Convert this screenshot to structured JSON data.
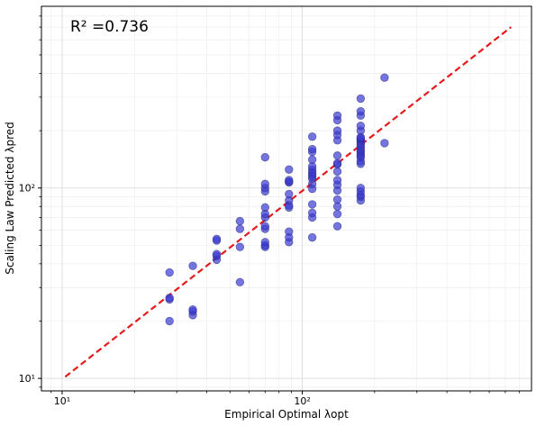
{
  "chart_data": {
    "type": "scatter",
    "title": "",
    "annotation": "R² =0.736",
    "xlabel": "Empirical Optimal λopt",
    "ylabel": "Scaling Law Predicted λpred",
    "xscale": "log",
    "yscale": "log",
    "xlim": [
      8.2,
      900
    ],
    "ylim": [
      8.6,
      900
    ],
    "xticks": [
      {
        "value": 10,
        "label": "10¹"
      },
      {
        "value": 100,
        "label": "10²"
      }
    ],
    "yticks": [
      {
        "value": 10,
        "label": "10¹"
      },
      {
        "value": 100,
        "label": "10²"
      }
    ],
    "grid": true,
    "point_color": "#3b3bd1",
    "line_color": "#e8191c",
    "reference_line": {
      "style": "dashed",
      "x": [
        10.3,
        740
      ],
      "y": [
        10.2,
        700
      ]
    },
    "series": [
      {
        "points": [
          [
            28,
            20
          ],
          [
            28,
            26
          ],
          [
            28,
            26.5
          ],
          [
            28,
            36
          ],
          [
            35,
            21.5
          ],
          [
            35,
            22.5
          ],
          [
            35,
            23
          ],
          [
            35,
            39
          ],
          [
            44,
            42
          ],
          [
            44,
            44
          ],
          [
            44,
            45
          ],
          [
            44,
            53
          ],
          [
            44,
            54
          ],
          [
            55,
            32
          ],
          [
            55,
            49
          ],
          [
            55,
            61
          ],
          [
            55,
            67
          ],
          [
            70,
            49
          ],
          [
            70,
            50
          ],
          [
            70,
            52
          ],
          [
            70,
            61
          ],
          [
            70,
            63
          ],
          [
            70,
            70
          ],
          [
            70,
            73
          ],
          [
            70,
            79
          ],
          [
            70,
            96
          ],
          [
            70,
            100
          ],
          [
            70,
            105
          ],
          [
            70,
            145
          ],
          [
            88,
            52
          ],
          [
            88,
            55
          ],
          [
            88,
            59
          ],
          [
            88,
            79
          ],
          [
            88,
            81
          ],
          [
            88,
            86
          ],
          [
            88,
            93
          ],
          [
            88,
            107
          ],
          [
            88,
            108
          ],
          [
            88,
            110
          ],
          [
            88,
            125
          ],
          [
            110,
            55
          ],
          [
            110,
            70
          ],
          [
            110,
            74
          ],
          [
            110,
            82
          ],
          [
            110,
            99
          ],
          [
            110,
            105
          ],
          [
            110,
            112
          ],
          [
            110,
            115
          ],
          [
            110,
            118
          ],
          [
            110,
            121
          ],
          [
            110,
            125
          ],
          [
            110,
            130
          ],
          [
            110,
            141
          ],
          [
            110,
            155
          ],
          [
            110,
            160
          ],
          [
            110,
            186
          ],
          [
            140,
            63
          ],
          [
            140,
            73
          ],
          [
            140,
            80
          ],
          [
            140,
            87
          ],
          [
            140,
            97
          ],
          [
            140,
            104
          ],
          [
            140,
            110
          ],
          [
            140,
            122
          ],
          [
            140,
            133
          ],
          [
            140,
            135
          ],
          [
            140,
            148
          ],
          [
            140,
            178
          ],
          [
            140,
            190
          ],
          [
            140,
            200
          ],
          [
            140,
            227
          ],
          [
            140,
            240
          ],
          [
            175,
            86
          ],
          [
            175,
            90
          ],
          [
            175,
            92
          ],
          [
            175,
            96
          ],
          [
            175,
            100
          ],
          [
            175,
            134
          ],
          [
            175,
            138
          ],
          [
            175,
            145
          ],
          [
            175,
            148
          ],
          [
            175,
            152
          ],
          [
            175,
            156
          ],
          [
            175,
            159
          ],
          [
            175,
            164
          ],
          [
            175,
            168
          ],
          [
            175,
            172
          ],
          [
            175,
            177
          ],
          [
            175,
            180
          ],
          [
            175,
            182
          ],
          [
            175,
            185
          ],
          [
            175,
            200
          ],
          [
            175,
            212
          ],
          [
            175,
            240
          ],
          [
            175,
            253
          ],
          [
            175,
            295
          ],
          [
            220,
            172
          ],
          [
            220,
            380
          ]
        ]
      }
    ]
  }
}
